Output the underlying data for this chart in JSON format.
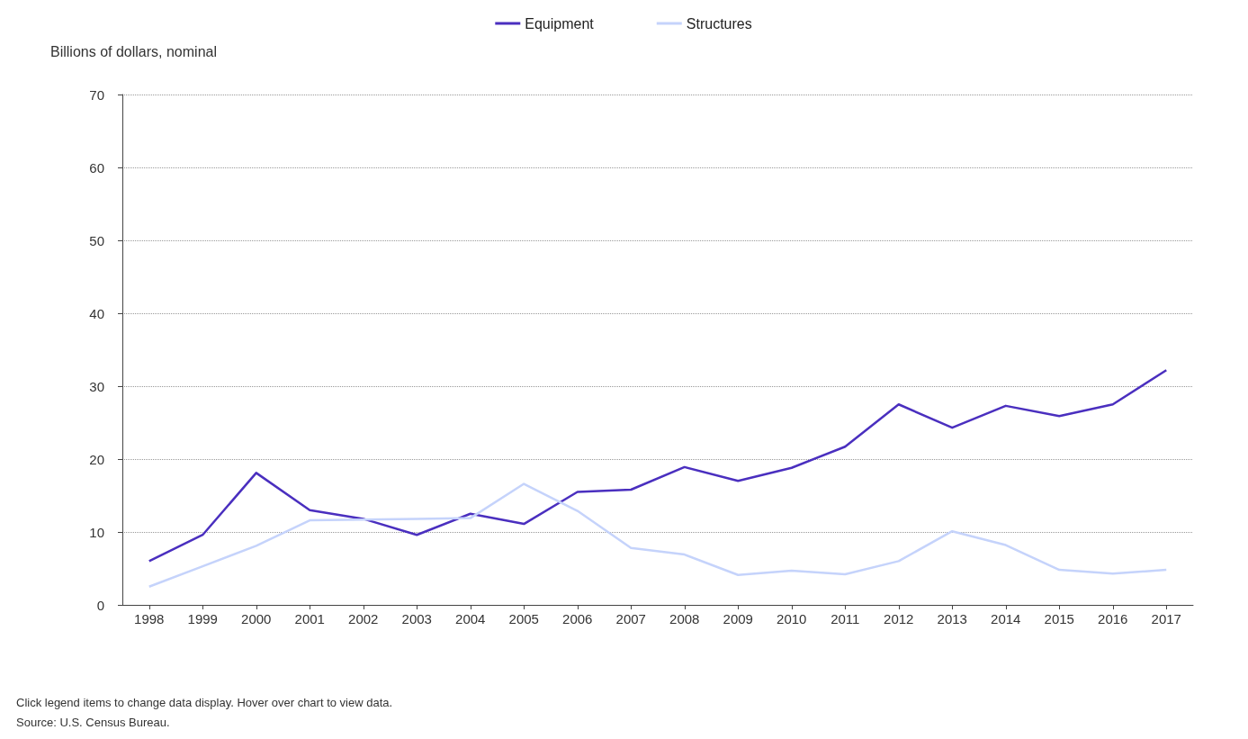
{
  "chart_data": {
    "type": "line",
    "ylabel": "Billions of dollars, nominal",
    "categories": [
      "1998",
      "1999",
      "2000",
      "2001",
      "2002",
      "2003",
      "2004",
      "2005",
      "2006",
      "2007",
      "2008",
      "2009",
      "2010",
      "2011",
      "2012",
      "2013",
      "2014",
      "2015",
      "2016",
      "2017"
    ],
    "series": [
      {
        "name": "Equipment",
        "color": "#4a2fbf",
        "values": [
          6.0,
          9.6,
          18.1,
          13.0,
          11.8,
          9.6,
          12.5,
          11.1,
          15.5,
          15.8,
          18.9,
          17.0,
          18.8,
          21.7,
          27.5,
          24.3,
          27.3,
          25.9,
          27.5,
          32.2
        ]
      },
      {
        "name": "Structures",
        "color": "#c5d3fb",
        "values": [
          2.5,
          5.3,
          8.1,
          11.6,
          11.7,
          11.8,
          11.9,
          16.6,
          12.9,
          7.8,
          6.9,
          4.1,
          4.7,
          4.2,
          6.0,
          10.1,
          8.2,
          4.8,
          4.3,
          4.8
        ]
      }
    ],
    "ylim": [
      0,
      70
    ],
    "yticks": [
      0,
      10,
      20,
      30,
      40,
      50,
      60,
      70
    ],
    "grid": "y",
    "legend": "top",
    "marker": "none",
    "line_style": "solid",
    "annotations": [
      "Click legend items to change data display. Hover over chart to view data.",
      "Source: U.S. Census Bureau."
    ]
  }
}
